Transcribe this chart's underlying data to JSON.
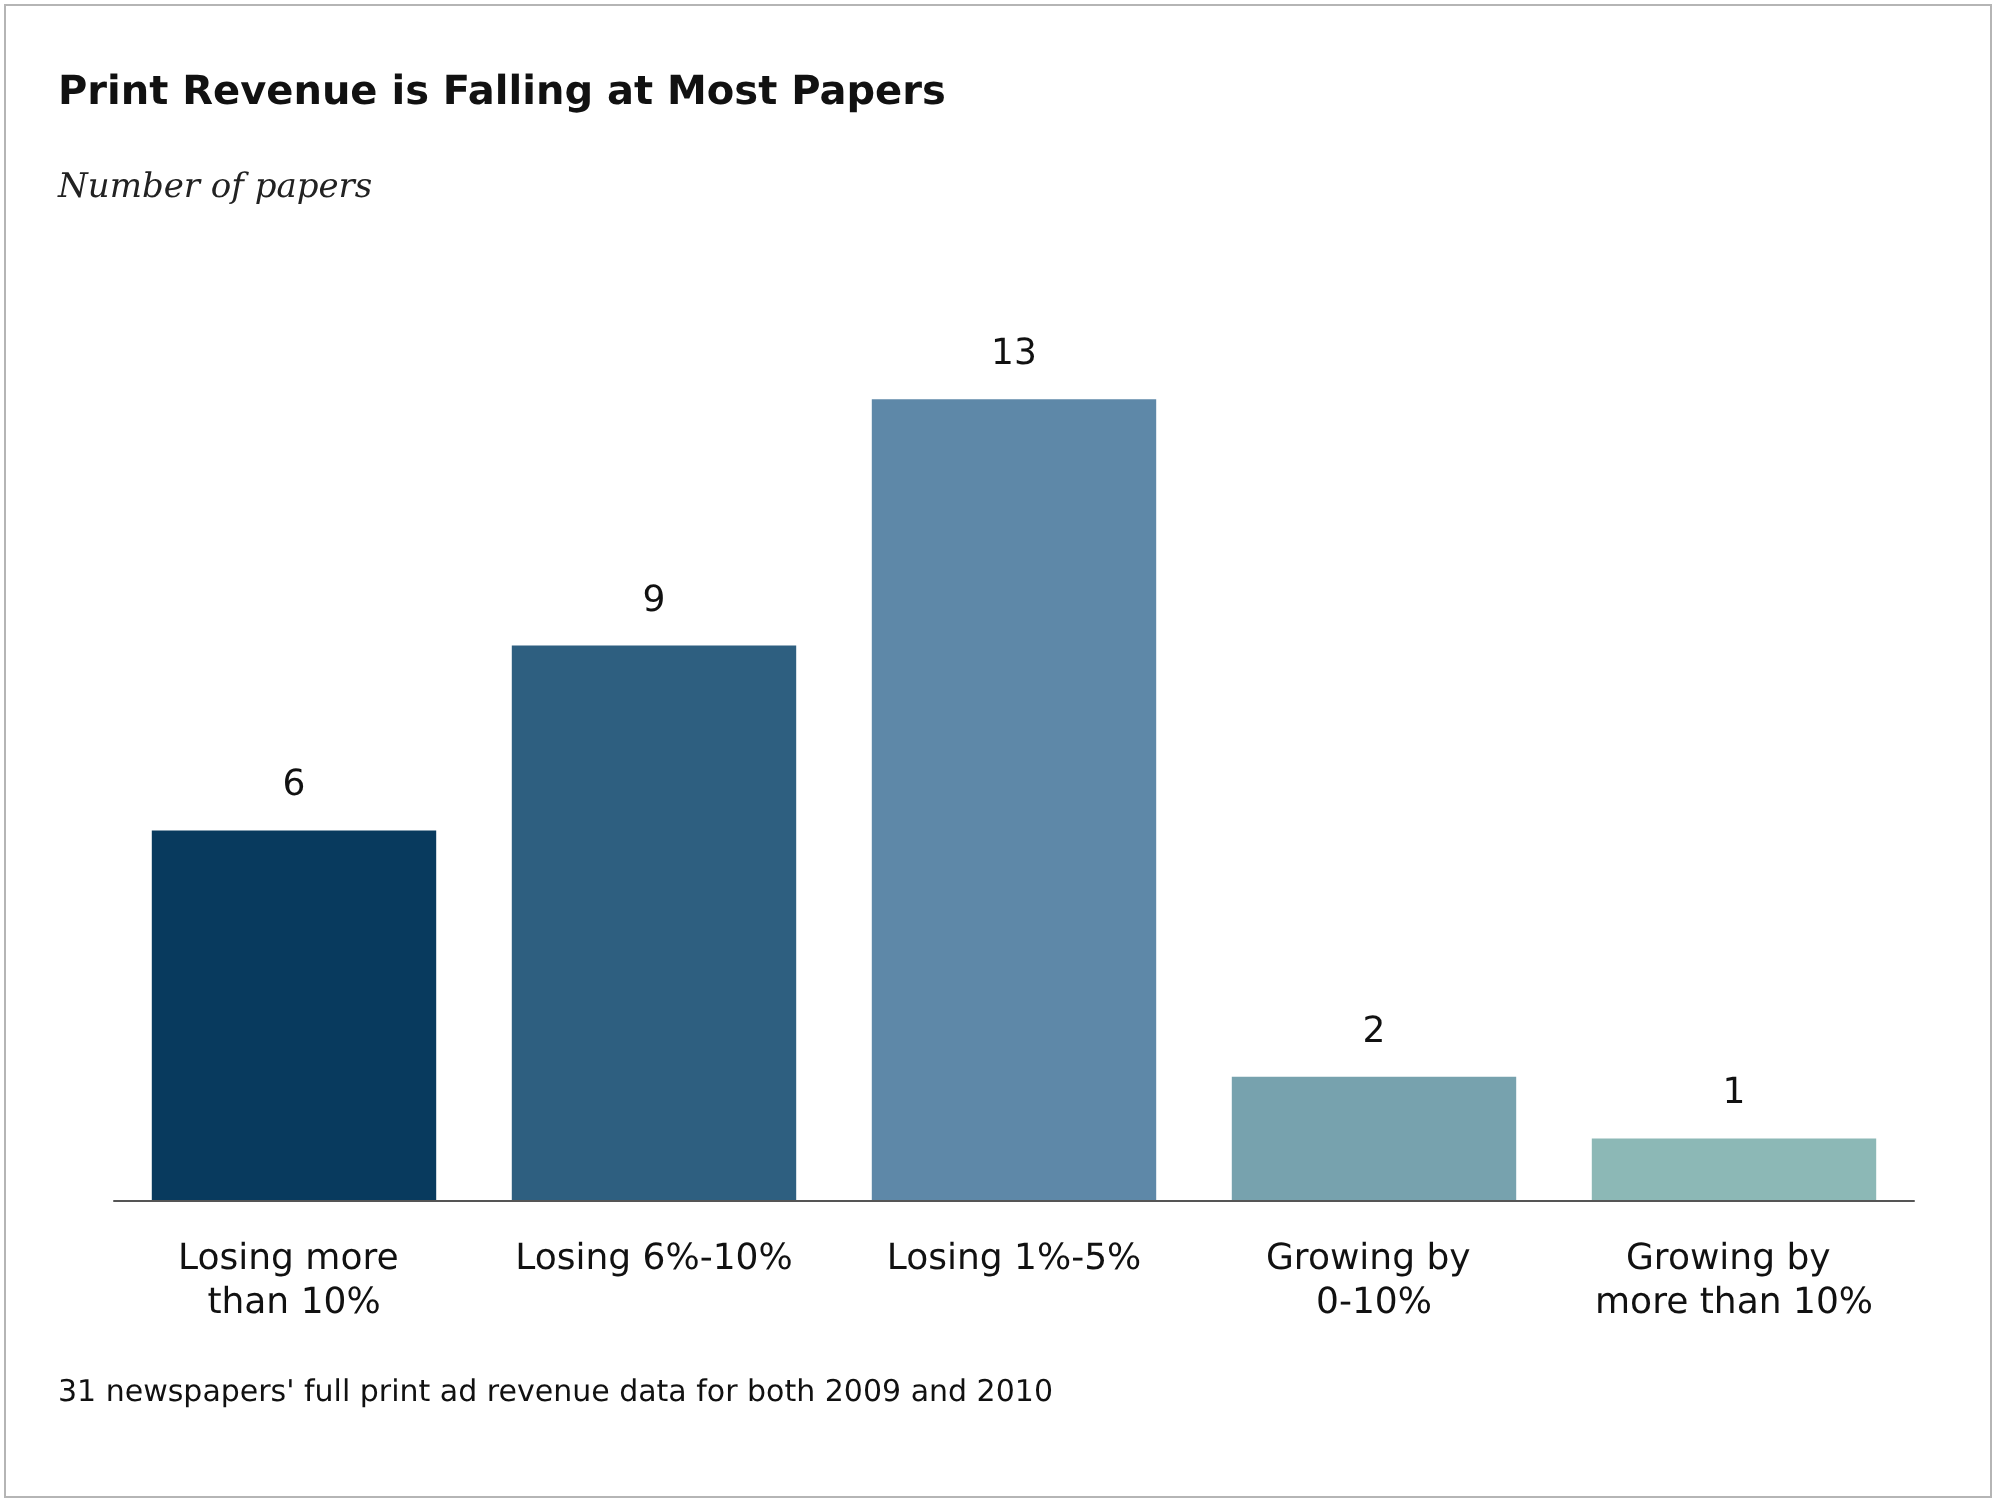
{
  "chart_data": {
    "type": "bar",
    "title": "Print Revenue is Falling at Most Papers",
    "subtitle": "Number of papers",
    "categories": [
      "Losing more than 10%",
      "Losing 6%-10%",
      "Losing 1%-5%",
      "Growing by 0-10%",
      "Growing by more than 10%"
    ],
    "values": [
      6,
      9,
      13,
      2,
      1
    ],
    "colors": [
      "#083a5e",
      "#2e5f80",
      "#5e88a8",
      "#77a2ae",
      "#8cb8b6"
    ],
    "data_labels": true,
    "grid": false,
    "annotations": [
      "31 newspapers' full print ad revenue data for both 2009 and 2010"
    ]
  }
}
